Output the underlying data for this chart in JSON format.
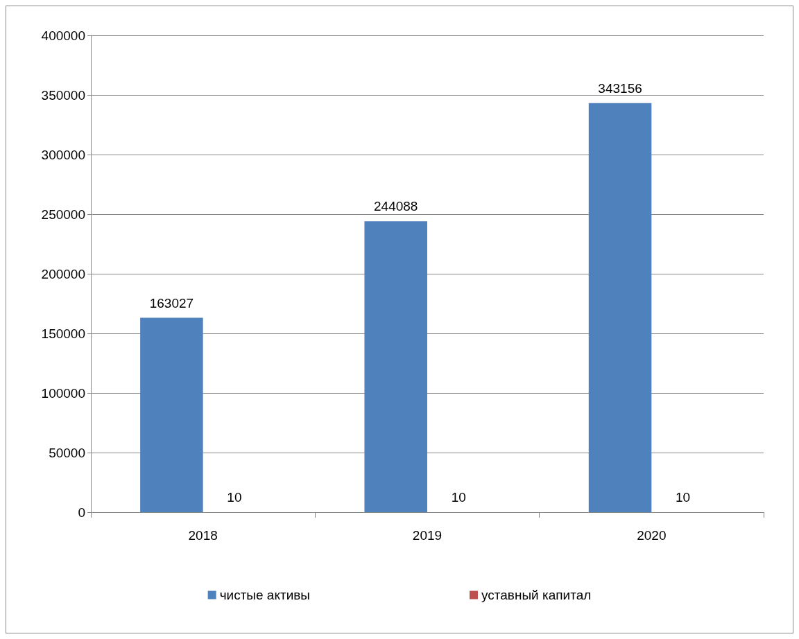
{
  "chart_data": {
    "type": "bar",
    "categories": [
      "2018",
      "2019",
      "2020"
    ],
    "series": [
      {
        "name": "чистые активы",
        "color": "#4f81bd",
        "values": [
          163027,
          244088,
          343156
        ]
      },
      {
        "name": "уставный капитал",
        "color": "#c0504d",
        "values": [
          10,
          10,
          10
        ]
      }
    ],
    "ylim": [
      0,
      400000
    ],
    "yticks": [
      0,
      50000,
      100000,
      150000,
      200000,
      250000,
      300000,
      350000,
      400000
    ],
    "grid": "y",
    "legend": "bottom",
    "data_labels": true
  }
}
